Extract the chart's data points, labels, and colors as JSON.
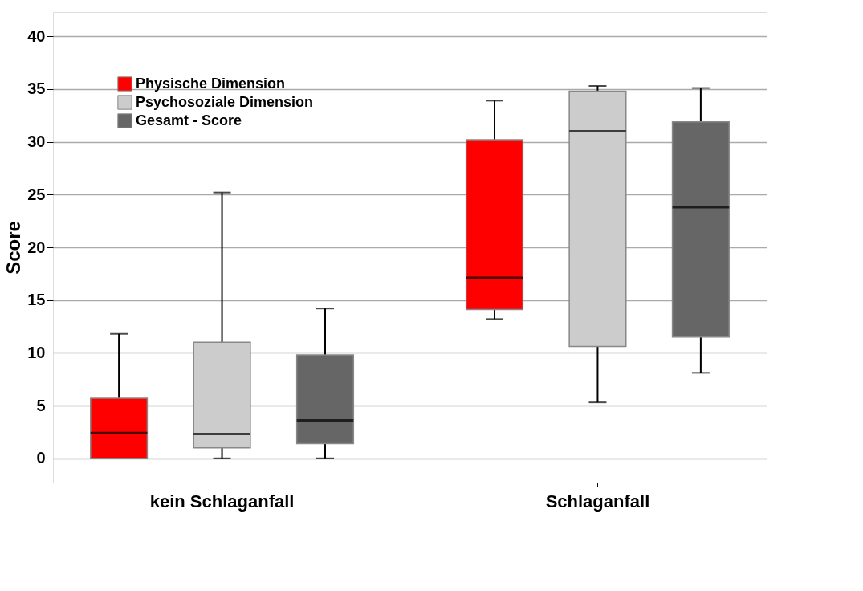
{
  "chart_data": {
    "type": "box",
    "ylabel": "Score",
    "categories": [
      "kein Schlaganfall",
      "Schlaganfall"
    ],
    "ylim": [
      -2.3,
      42.3
    ],
    "yticks": [
      0,
      5,
      10,
      15,
      20,
      25,
      30,
      35,
      40
    ],
    "grid": "y",
    "legend": "top left",
    "series": [
      {
        "name": "Physische Dimension",
        "color": "#ff0000",
        "boxes": [
          {
            "low": 0,
            "q1": 0,
            "median": 2.4,
            "q3": 5.7,
            "high": 11.8
          },
          {
            "low": 13.2,
            "q1": 14.1,
            "median": 17.1,
            "q3": 30.2,
            "high": 33.9
          }
        ]
      },
      {
        "name": "Psychosoziale Dimension",
        "color": "#cccccc",
        "boxes": [
          {
            "low": 0,
            "q1": 1.0,
            "median": 2.3,
            "q3": 11.0,
            "high": 25.2
          },
          {
            "low": 5.3,
            "q1": 10.6,
            "median": 31.0,
            "q3": 34.8,
            "high": 35.3
          }
        ]
      },
      {
        "name": "Gesamt - Score",
        "color": "#666666",
        "boxes": [
          {
            "low": 0,
            "q1": 1.4,
            "median": 3.6,
            "q3": 9.8,
            "high": 14.2
          },
          {
            "low": 8.1,
            "q1": 11.5,
            "median": 23.8,
            "q3": 31.9,
            "high": 35.1
          }
        ]
      }
    ]
  }
}
